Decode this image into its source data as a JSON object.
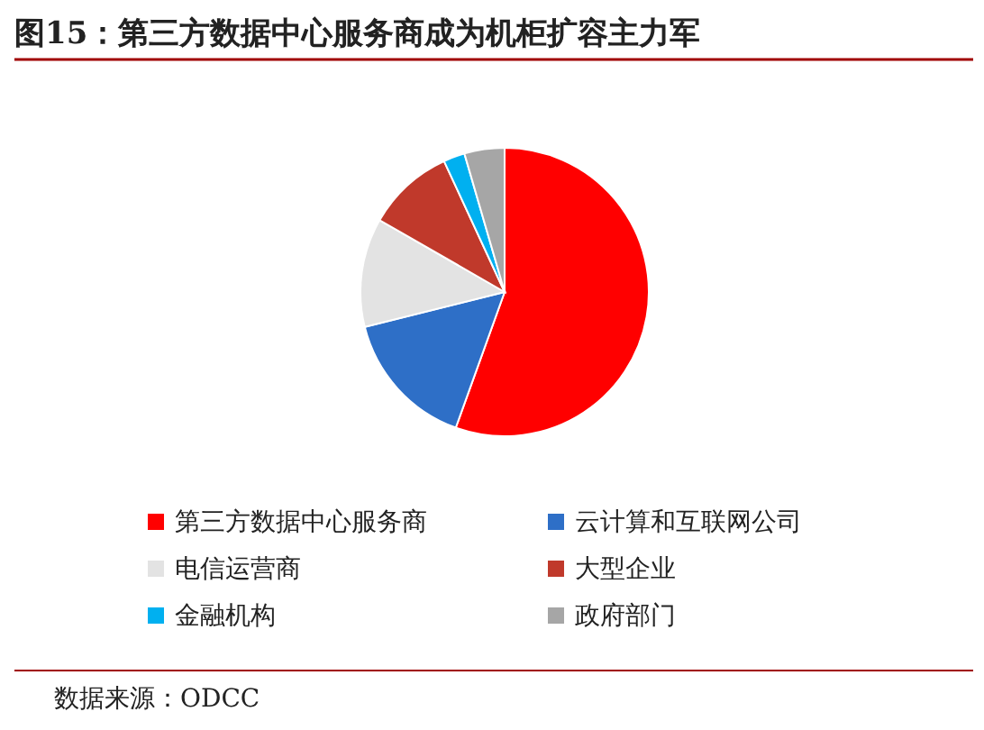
{
  "chart_data": {
    "type": "pie",
    "title": "图15：第三方数据中心服务商成为机柜扩容主力军",
    "categories": [
      "第三方数据中心服务商",
      "云计算和互联网公司",
      "电信运营商",
      "大型企业",
      "金融机构",
      "政府部门"
    ],
    "values": [
      55.5,
      15.6,
      12.2,
      9.8,
      2.4,
      4.5
    ],
    "colors": [
      "#ff0000",
      "#2e6fc7",
      "#e3e3e3",
      "#c0392b",
      "#00b0f0",
      "#a6a6a6"
    ],
    "legend": "bottom",
    "annotations": [
      "数据来源：ODCC"
    ]
  }
}
